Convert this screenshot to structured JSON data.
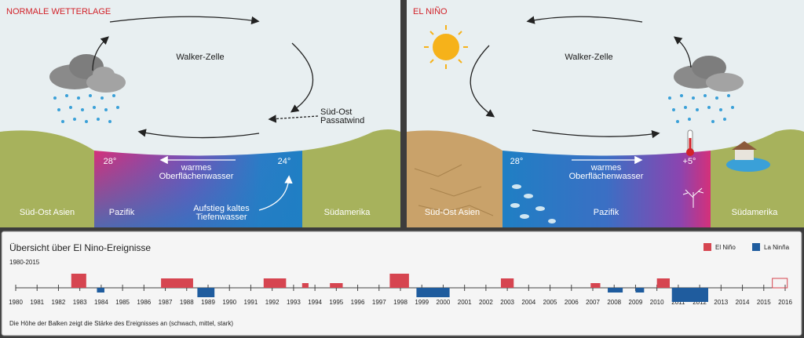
{
  "normal": {
    "title": "NORMALE WETTERLAGE",
    "walker": "Walker-Zelle",
    "wind": [
      "Süd-Ost",
      "Passatwind"
    ],
    "temp_west": "28°",
    "temp_east": "24°",
    "warm_water": [
      "warmes",
      "Oberflächenwasser"
    ],
    "upwelling": [
      "Aufstieg kaltes",
      "Tiefenwasser"
    ],
    "regions": [
      "Süd-Ost Asien",
      "Pazifik",
      "Südamerika"
    ]
  },
  "elnino": {
    "title": "EL NIÑO",
    "walker": "Walker-Zelle",
    "temp_west": "28°",
    "temp_east": "+5°",
    "warm_water": [
      "warmes",
      "Oberflächenwasser"
    ],
    "regions": [
      "Süd-Ost Asien",
      "Pazifik",
      "Südamerika"
    ]
  },
  "timeline": {
    "title": "Übersicht  über El Nino-Ereignisse",
    "subtitle": "1980-2015",
    "legend": [
      {
        "name": "El Niño",
        "color": "#d64550"
      },
      {
        "name": "La Ninña",
        "color": "#1f5c9e"
      }
    ],
    "xlim": [
      1980,
      2016
    ],
    "years": [
      1980,
      1981,
      1982,
      1983,
      1984,
      1985,
      1986,
      1987,
      1988,
      1989,
      1990,
      1991,
      1992,
      1993,
      1994,
      1995,
      1996,
      1997,
      1998,
      1999,
      2000,
      2001,
      2002,
      2003,
      2004,
      2005,
      2006,
      2007,
      2008,
      2009,
      2010,
      2011,
      2012,
      2013,
      2014,
      2015,
      2016
    ],
    "events": [
      {
        "type": 0,
        "start": 1982.6,
        "end": 1983.3,
        "strength": 3
      },
      {
        "type": 1,
        "start": 1983.8,
        "end": 1984.15,
        "strength": 1
      },
      {
        "type": 0,
        "start": 1986.8,
        "end": 1988.3,
        "strength": 2
      },
      {
        "type": 1,
        "start": 1988.5,
        "end": 1989.3,
        "strength": 2
      },
      {
        "type": 0,
        "start": 1991.6,
        "end": 1992.65,
        "strength": 2
      },
      {
        "type": 0,
        "start": 1993.4,
        "end": 1993.7,
        "strength": 1
      },
      {
        "type": 0,
        "start": 1994.7,
        "end": 1995.3,
        "strength": 1
      },
      {
        "type": 0,
        "start": 1997.5,
        "end": 1998.4,
        "strength": 3
      },
      {
        "type": 1,
        "start": 1998.75,
        "end": 2000.3,
        "strength": 2
      },
      {
        "type": 0,
        "start": 2002.7,
        "end": 2003.3,
        "strength": 2
      },
      {
        "type": 0,
        "start": 2006.9,
        "end": 2007.35,
        "strength": 1
      },
      {
        "type": 1,
        "start": 2007.7,
        "end": 2008.4,
        "strength": 1
      },
      {
        "type": 1,
        "start": 2009.0,
        "end": 2009.4,
        "strength": 1
      },
      {
        "type": 0,
        "start": 2010.0,
        "end": 2010.6,
        "strength": 2
      },
      {
        "type": 1,
        "start": 2010.7,
        "end": 2012.4,
        "strength": 3
      },
      {
        "type": 0,
        "start": 2015.4,
        "end": 2016.1,
        "strength": 2,
        "ongoing": true
      }
    ],
    "note": "Die Höhe der Balken zeigt die Stärke des Ereignisses an (schwach, mittel, stark)"
  }
}
